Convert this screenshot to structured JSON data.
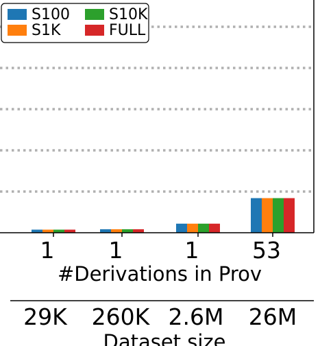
{
  "chart_data": {
    "type": "bar",
    "categories": [
      "1",
      "1",
      "1",
      "53"
    ],
    "xlabel": "#Derivations in Prov",
    "ylabel": "",
    "series": [
      {
        "name": "S100",
        "color": "#1f77b4",
        "values": [
          0.75,
          0.85,
          2.2,
          8.4
        ]
      },
      {
        "name": "S1K",
        "color": "#ff7f0e",
        "values": [
          0.75,
          0.85,
          2.2,
          8.4
        ]
      },
      {
        "name": "S10K",
        "color": "#2ca02c",
        "values": [
          0.75,
          0.85,
          2.2,
          8.4
        ]
      },
      {
        "name": "FULL",
        "color": "#d62728",
        "values": [
          0.75,
          0.85,
          2.2,
          8.4
        ]
      }
    ],
    "ylim": [
      0,
      50
    ],
    "grid": "horizontal dotted",
    "legend": "top-left",
    "secondary_axis": {
      "categories": [
        "29K",
        "260K",
        "2.6M",
        "26M"
      ],
      "xlabel": "Dataset size"
    }
  }
}
